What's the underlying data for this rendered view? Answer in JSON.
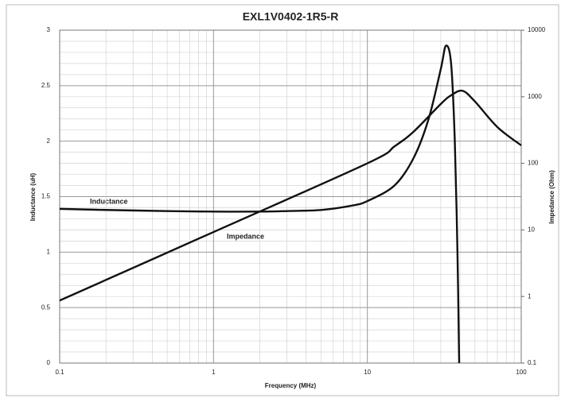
{
  "chart_data": {
    "type": "line",
    "title": "EXL1V0402-1R5-R",
    "x_label": "Frequency (MHz)",
    "y_label": "Inductance (uH)",
    "y2_label": "Impedance (Ohm)",
    "x_log": true,
    "y2_log": true,
    "grid": true,
    "minor_grid": true,
    "xlim": [
      0.1,
      100
    ],
    "xticks": [
      0.1,
      1,
      10,
      100
    ],
    "ylim": [
      0,
      3
    ],
    "yticks": [
      0,
      0.5,
      1,
      1.5,
      2,
      2.5,
      3
    ],
    "y2lim": [
      0.1,
      10000
    ],
    "y2ticks": [
      0.1,
      1,
      10,
      100,
      1000,
      10000
    ],
    "series": [
      {
        "name": "Inductance",
        "color": "#111111",
        "x": [
          0.1,
          0.2,
          0.5,
          1,
          2,
          3,
          5,
          8,
          10,
          15,
          20,
          25,
          30,
          32.4,
          35,
          37,
          38.5,
          39.5
        ],
        "values": [
          1.39,
          1.38,
          1.37,
          1.365,
          1.365,
          1.37,
          1.38,
          1.42,
          1.46,
          1.6,
          1.85,
          2.2,
          2.65,
          2.86,
          2.7,
          2.0,
          1.0,
          0
        ]
      },
      {
        "name": "Impedance",
        "color": "#111111",
        "axis": "y2",
        "x": [
          0.1,
          1,
          10,
          15,
          20,
          30,
          35,
          41.5,
          50,
          70,
          100
        ],
        "values": [
          0.87,
          9.3,
          100,
          180,
          300,
          780,
          1050,
          1230,
          850,
          350,
          186
        ]
      }
    ]
  }
}
